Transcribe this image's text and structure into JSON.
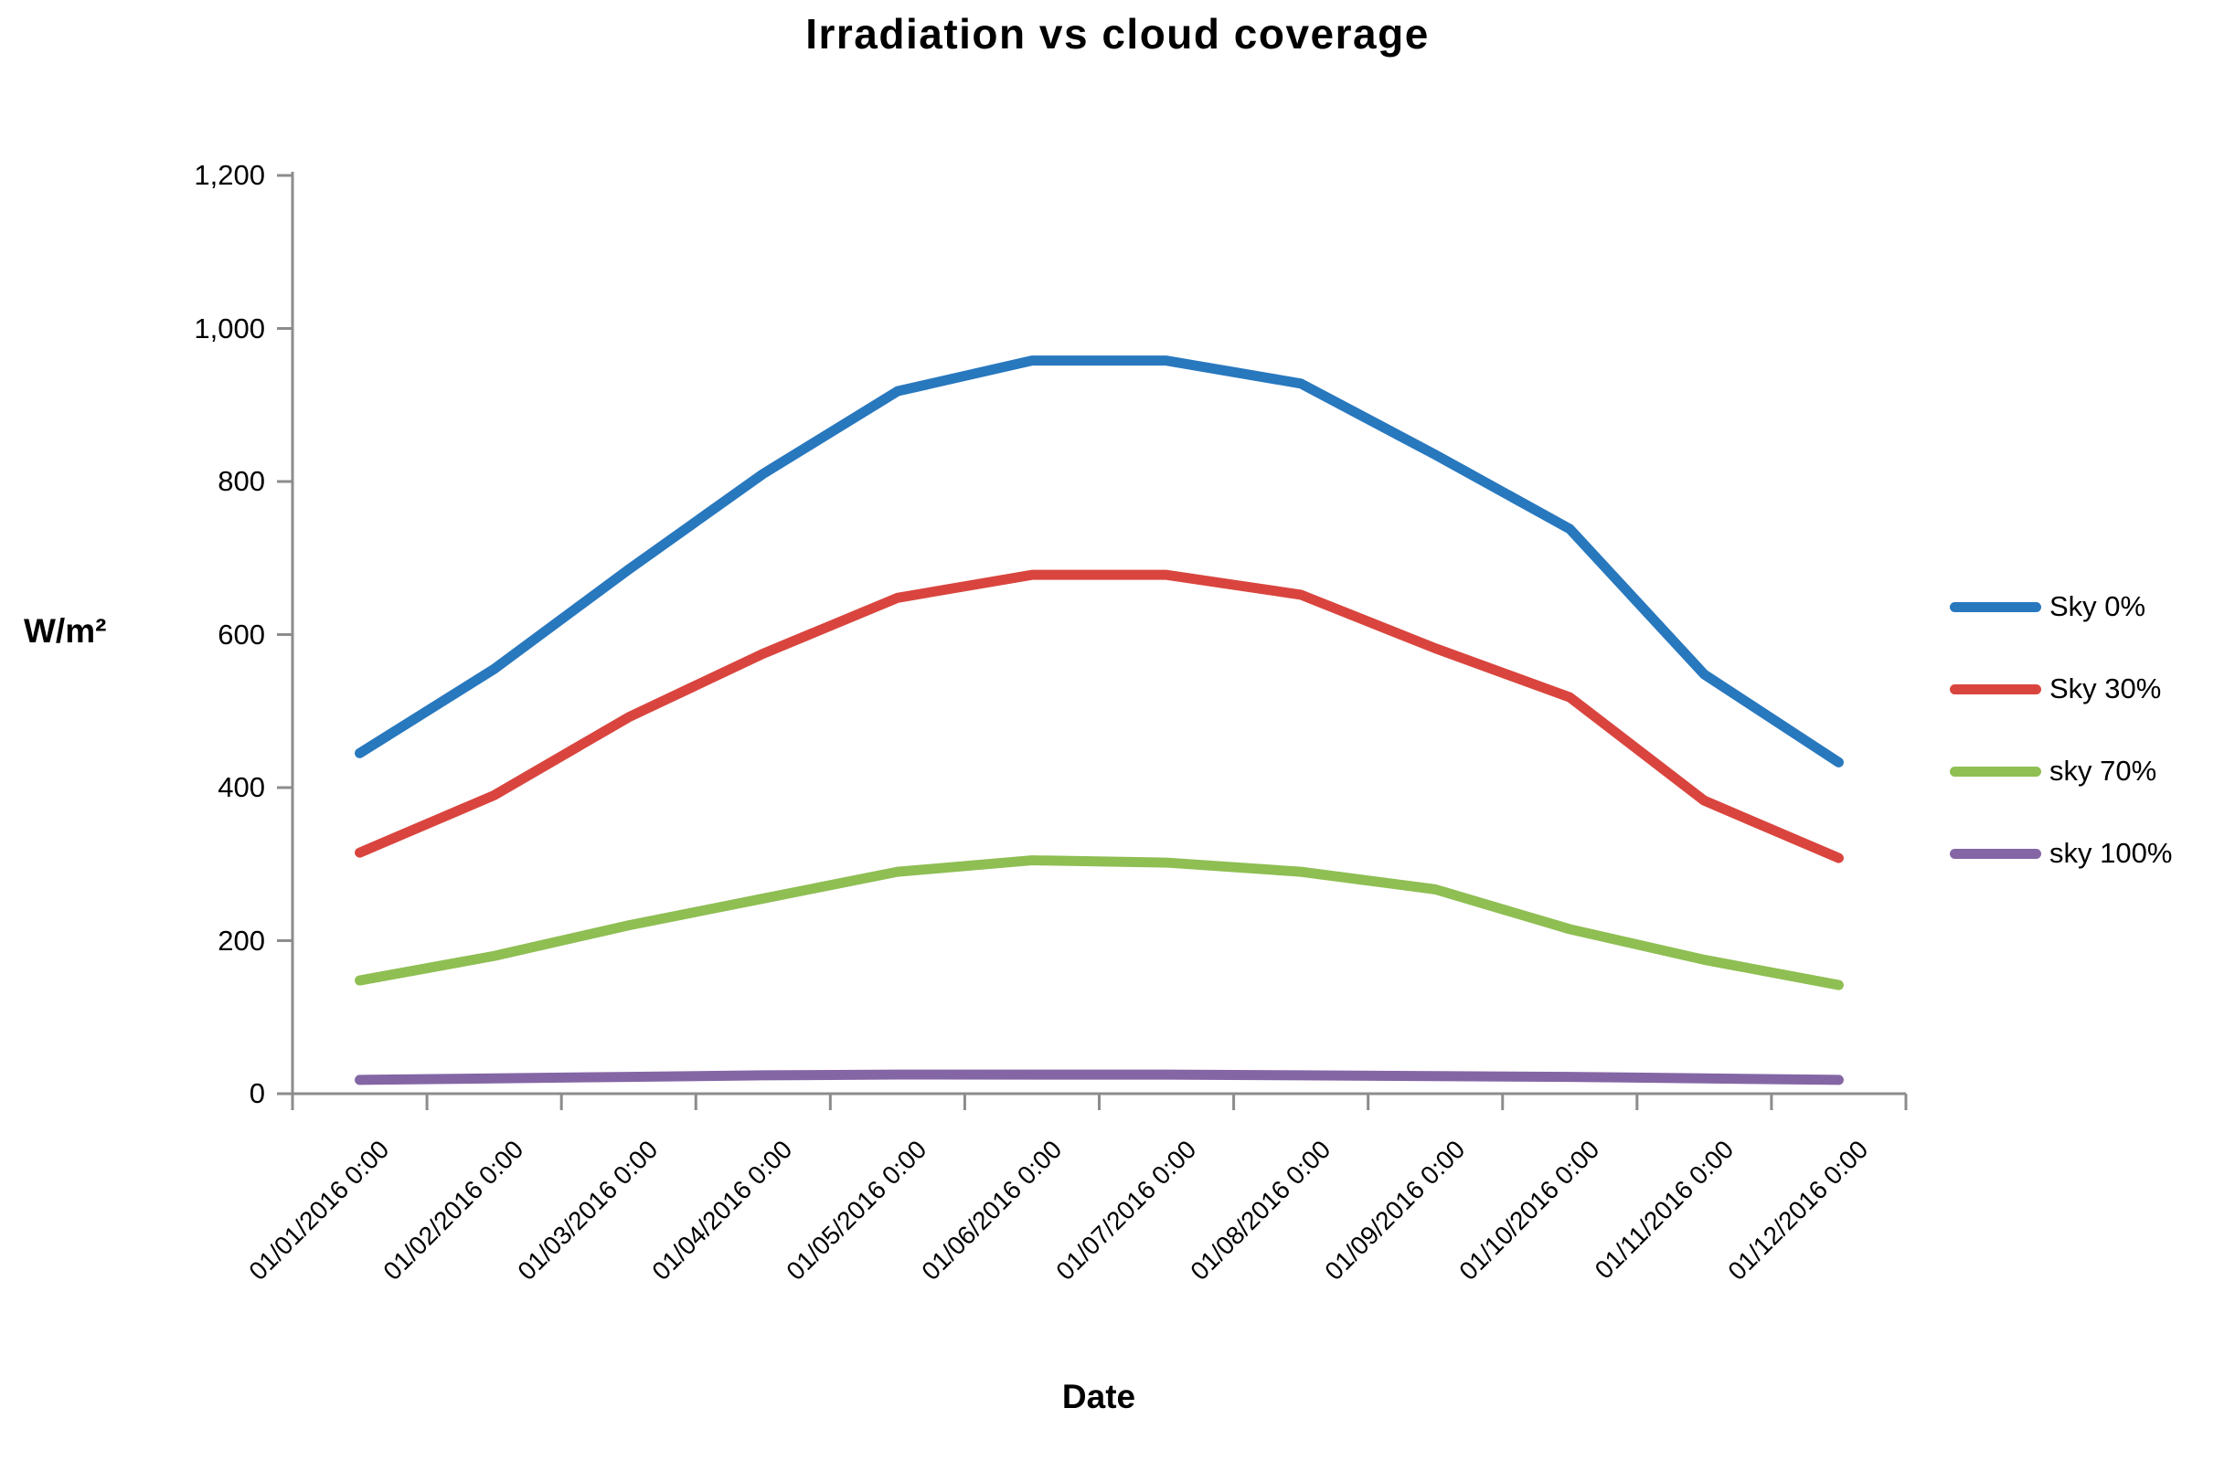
{
  "chart_data": {
    "type": "line",
    "title": "Irradiation vs cloud coverage",
    "xlabel": "Date",
    "ylabel": "W/m²",
    "categories": [
      "01/01/2016 0:00",
      "01/02/2016 0:00",
      "01/03/2016 0:00",
      "01/04/2016 0:00",
      "01/05/2016 0:00",
      "01/06/2016 0:00",
      "01/07/2016 0:00",
      "01/08/2016 0:00",
      "01/09/2016 0:00",
      "01/10/2016 0:00",
      "01/11/2016 0:00",
      "01/12/2016 0:00"
    ],
    "series": [
      {
        "name": "Sky 0%",
        "color": "#2878BE",
        "values": [
          445,
          555,
          685,
          810,
          918,
          958,
          958,
          928,
          835,
          738,
          548,
          433
        ]
      },
      {
        "name": "Sky 30%",
        "color": "#D9453E",
        "values": [
          315,
          390,
          492,
          575,
          648,
          678,
          678,
          652,
          582,
          518,
          383,
          308
        ]
      },
      {
        "name": "sky 70%",
        "color": "#8FBE53",
        "values": [
          148,
          180,
          220,
          255,
          290,
          305,
          302,
          290,
          267,
          215,
          175,
          142
        ]
      },
      {
        "name": "sky 100%",
        "color": "#8466A5",
        "values": [
          18,
          20,
          22,
          24,
          25,
          25,
          25,
          24,
          23,
          22,
          20,
          18
        ]
      }
    ],
    "ylim": [
      0,
      1200
    ],
    "y_tick_step": 200,
    "y_tick_labels": [
      "0",
      "200",
      "400",
      "600",
      "800",
      "1,000",
      "1,200"
    ],
    "grid": false,
    "legend_position": "right",
    "axis_color": "#8C8C8C",
    "text_color": "#000000"
  }
}
